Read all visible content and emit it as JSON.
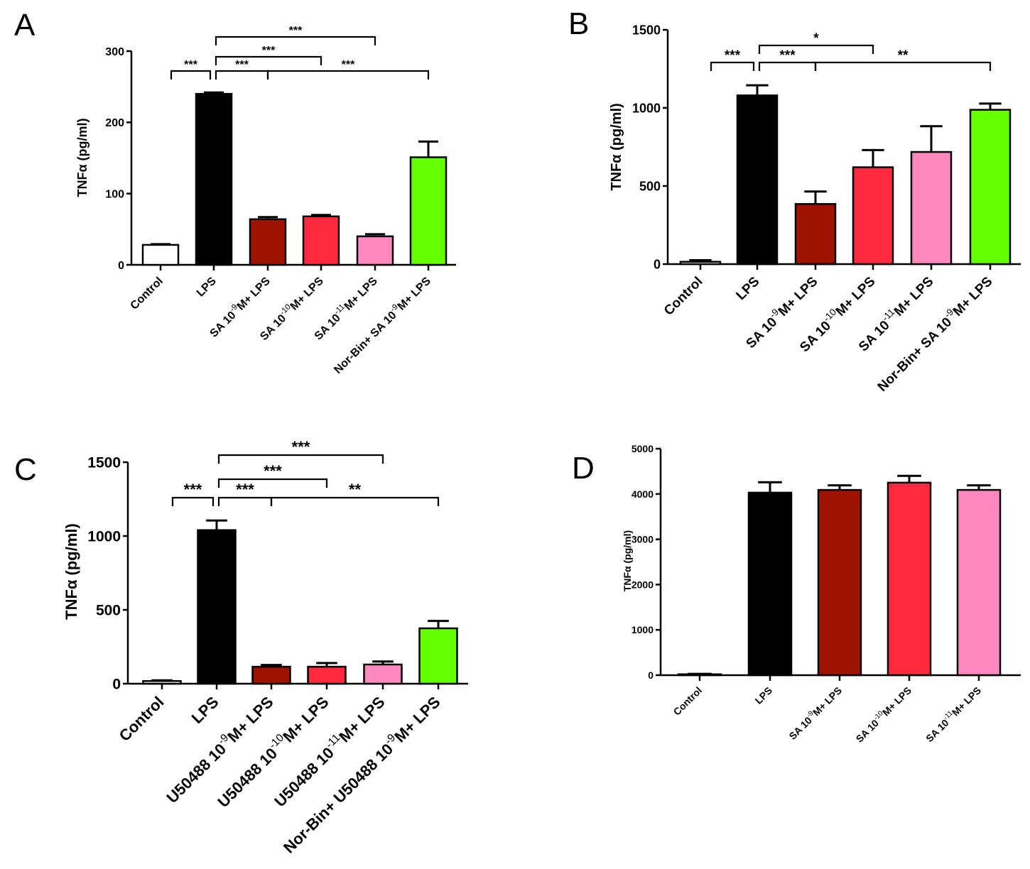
{
  "chart_data": [
    {
      "panel": "A",
      "type": "bar",
      "ylabel": "TNFα (pg/ml)",
      "ylim": [
        0,
        300
      ],
      "yticks": [
        0,
        100,
        200,
        300
      ],
      "categories": [
        {
          "pre": "Control"
        },
        {
          "pre": "LPS"
        },
        {
          "pre": "SA 10",
          "sup": "-9",
          "post": "M+ LPS"
        },
        {
          "pre": "SA 10",
          "sup": "-10",
          "post": "M+ LPS"
        },
        {
          "pre": "SA 10",
          "sup": "-11",
          "post": "M+ LPS"
        },
        {
          "pre": "Nor-Bin+ SA 10",
          "sup": "-9",
          "post": "M+ LPS"
        }
      ],
      "values": [
        28,
        240,
        64,
        68,
        40,
        151
      ],
      "errors": [
        1,
        2,
        3,
        2,
        3,
        22
      ],
      "colors": [
        "#ffffff",
        "#000000",
        "#9e1300",
        "#ff2a40",
        "#ff88bf",
        "#66ff00"
      ],
      "significance": [
        {
          "from": 0,
          "to": 1,
          "stars": "***"
        },
        {
          "from": 1,
          "to": 2,
          "stars": "***"
        },
        {
          "from": 1,
          "to": 3,
          "stars": "***"
        },
        {
          "from": 1,
          "to": 4,
          "stars": "***"
        },
        {
          "from": 2,
          "to": 5,
          "stars": "***"
        }
      ]
    },
    {
      "panel": "B",
      "type": "bar",
      "ylabel": "TNFα (pg/ml)",
      "ylim": [
        0,
        1500
      ],
      "yticks": [
        0,
        500,
        1000,
        1500
      ],
      "categories": [
        {
          "pre": "Control"
        },
        {
          "pre": "LPS"
        },
        {
          "pre": "SA 10",
          "sup": "-9",
          "post": "M+ LPS"
        },
        {
          "pre": "SA 10",
          "sup": "-10",
          "post": "M+ LPS"
        },
        {
          "pre": "SA 10",
          "sup": "-11",
          "post": "M+ LPS"
        },
        {
          "pre": "Nor-Bin+ SA 10",
          "sup": "-9",
          "post": "M+ LPS"
        }
      ],
      "values": [
        15,
        1080,
        385,
        620,
        718,
        988
      ],
      "errors": [
        10,
        65,
        80,
        110,
        165,
        40
      ],
      "colors": [
        "#ffffff",
        "#000000",
        "#9e1300",
        "#ff2a40",
        "#ff88bf",
        "#66ff00"
      ],
      "significance": [
        {
          "from": 0,
          "to": 1,
          "stars": "***"
        },
        {
          "from": 1,
          "to": 2,
          "stars": "***"
        },
        {
          "from": 1,
          "to": 3,
          "stars": "*"
        },
        {
          "from": 2,
          "to": 5,
          "stars": "**"
        }
      ]
    },
    {
      "panel": "C",
      "type": "bar",
      "ylabel": "TNFα (pg/ml)",
      "ylim": [
        0,
        1500
      ],
      "yticks": [
        0,
        500,
        1000,
        1500
      ],
      "categories": [
        {
          "pre": "Control"
        },
        {
          "pre": "LPS"
        },
        {
          "pre": "U50488 10",
          "sup": "-9",
          "post": "M+ LPS"
        },
        {
          "pre": "U50488 10",
          "sup": "-10",
          "post": "M+ LPS"
        },
        {
          "pre": "U50488 10",
          "sup": "-11",
          "post": "M+ LPS"
        },
        {
          "pre": "Nor-Bin+ U50488 10",
          "sup": "-9",
          "post": "M+ LPS"
        }
      ],
      "values": [
        18,
        1040,
        115,
        115,
        130,
        375
      ],
      "errors": [
        5,
        65,
        12,
        25,
        20,
        50
      ],
      "colors": [
        "#ffffff",
        "#000000",
        "#9e1300",
        "#ff2a40",
        "#ff88bf",
        "#66ff00"
      ],
      "significance": [
        {
          "from": 0,
          "to": 1,
          "stars": "***"
        },
        {
          "from": 1,
          "to": 2,
          "stars": "***"
        },
        {
          "from": 1,
          "to": 3,
          "stars": "***"
        },
        {
          "from": 1,
          "to": 4,
          "stars": "***"
        },
        {
          "from": 2,
          "to": 5,
          "stars": "**"
        }
      ]
    },
    {
      "panel": "D",
      "type": "bar",
      "ylabel": "TNFα (pg/ml)",
      "ylim": [
        0,
        5000
      ],
      "yticks": [
        0,
        1000,
        2000,
        3000,
        4000,
        5000
      ],
      "categories": [
        {
          "pre": "Control"
        },
        {
          "pre": "LPS"
        },
        {
          "pre": "SA 10",
          "sup": "-9",
          "post": "M+ LPS"
        },
        {
          "pre": "SA 10",
          "sup": "-10",
          "post": "M+ LPS"
        },
        {
          "pre": "SA 10",
          "sup": "-11",
          "post": "M+ LPS"
        }
      ],
      "values": [
        20,
        4030,
        4090,
        4250,
        4090
      ],
      "errors": [
        10,
        230,
        100,
        150,
        100
      ],
      "colors": [
        "#ffffff",
        "#000000",
        "#9e1300",
        "#ff2a40",
        "#ff88bf"
      ],
      "significance": []
    }
  ]
}
